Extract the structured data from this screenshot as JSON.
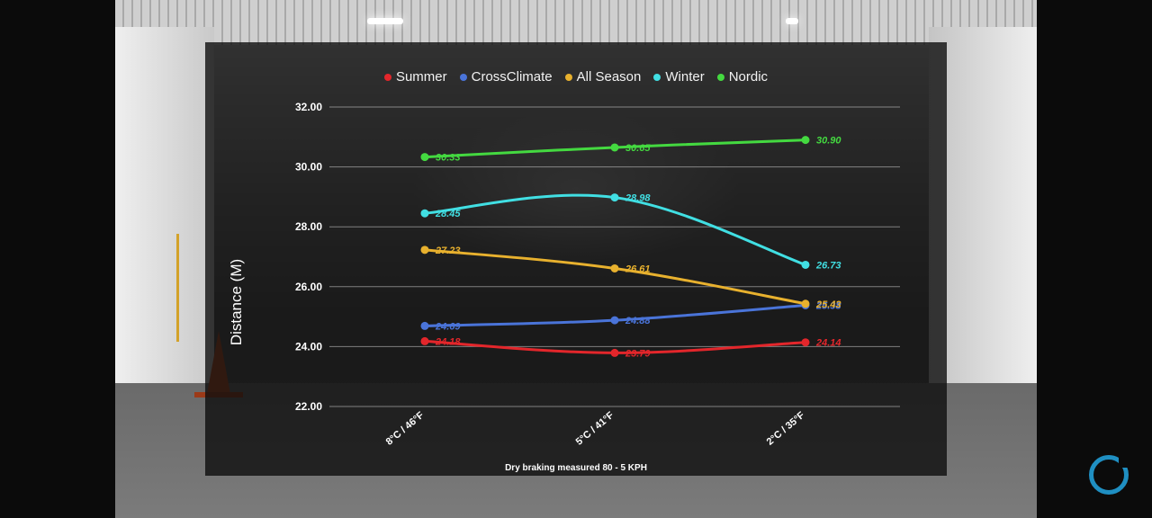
{
  "chart_data": {
    "type": "line",
    "title": "",
    "ylabel": "Distance (M)",
    "xlabel": "",
    "caption": "Dry braking measured 80 - 5 KPH",
    "categories": [
      "8°C / 46°F",
      "5°C / 41°F",
      "2°C / 35°F"
    ],
    "ylim": [
      22,
      32
    ],
    "yticks": [
      "22.00",
      "24.00",
      "26.00",
      "28.00",
      "30.00",
      "32.00"
    ],
    "grid": true,
    "legend_position": "top",
    "series": [
      {
        "name": "Summer",
        "color": "#e3262b",
        "values": [
          24.18,
          23.79,
          24.14
        ],
        "labels": [
          "24.18",
          "23.79",
          "24.14"
        ]
      },
      {
        "name": "CrossClimate",
        "color": "#4a74d9",
        "values": [
          24.69,
          24.88,
          25.38
        ],
        "labels": [
          "24.69",
          "24.88",
          "25.38"
        ]
      },
      {
        "name": "All Season",
        "color": "#e8b12e",
        "values": [
          27.23,
          26.61,
          25.43
        ],
        "labels": [
          "27.23",
          "26.61",
          "25.43"
        ]
      },
      {
        "name": "Winter",
        "color": "#41dfe3",
        "values": [
          28.45,
          28.98,
          26.73
        ],
        "labels": [
          "28.45",
          "28.98",
          "26.73"
        ]
      },
      {
        "name": "Nordic",
        "color": "#44d940",
        "values": [
          30.33,
          30.65,
          30.9
        ],
        "labels": [
          "30.33",
          "30.65",
          "30.90"
        ]
      }
    ]
  }
}
